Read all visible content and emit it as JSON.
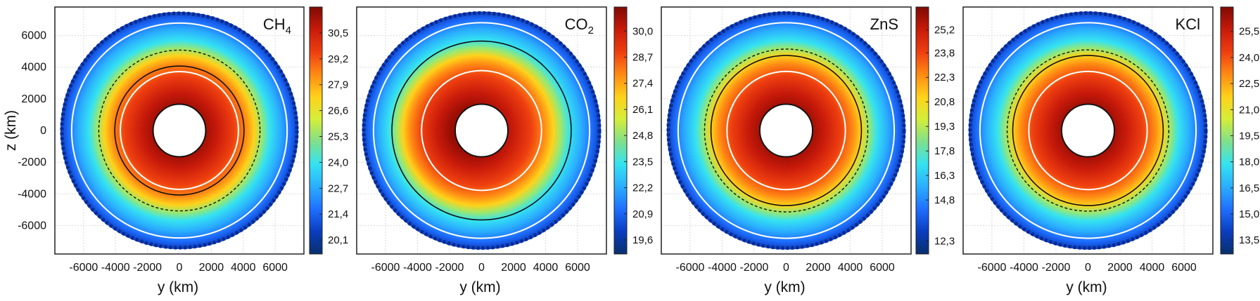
{
  "colors": {
    "grid": "#d9d9d9",
    "frame": "#222222",
    "contour": "#111111",
    "ring": "#ffffff",
    "scale": [
      "#08306b",
      "#0a3dbf",
      "#1f6fff",
      "#2aaeff",
      "#35e3f0",
      "#7fe08c",
      "#d4ee3a",
      "#ffd21a",
      "#ff8a14",
      "#ee3f10",
      "#c81a0a",
      "#7f0a04"
    ]
  },
  "chart_data": [
    {
      "type": "heatmap",
      "title_main": "CH",
      "title_sub": "4",
      "xlabel": "y (km)",
      "ylabel": "z (km)",
      "xlim": [
        -7800,
        7800
      ],
      "ylim": [
        -7800,
        7800
      ],
      "xticks": [
        "-6000",
        "-4000",
        "-2000",
        "0",
        "2000",
        "4000",
        "6000"
      ],
      "yticks": [
        "6000",
        "4000",
        "2000",
        "0",
        "-2000",
        "-4000",
        "-6000"
      ],
      "colorbar_ticks": [
        "30,5",
        "29,2",
        "27,9",
        "26,6",
        "25,3",
        "24,0",
        "22,7",
        "21,4",
        "20,1"
      ],
      "colorbar_range": [
        19.4,
        31.8
      ],
      "radii_km": {
        "hole": 1650,
        "inner_ring": 3700,
        "outer_ring": 6750,
        "edge": 7450
      },
      "contours": {
        "solid_km": 4050,
        "dashed_km": 5050
      },
      "peak_offset_km": 0,
      "show_ylabel": true
    },
    {
      "type": "heatmap",
      "title_main": "CO",
      "title_sub": "2",
      "xlabel": "y (km)",
      "ylabel": "",
      "xlim": [
        -7800,
        7800
      ],
      "ylim": [
        -7800,
        7800
      ],
      "xticks": [
        "-6000",
        "-4000",
        "-2000",
        "0",
        "2000",
        "4000",
        "6000"
      ],
      "yticks": [],
      "colorbar_ticks": [
        "30,0",
        "28,7",
        "27,4",
        "26,1",
        "24,8",
        "23,5",
        "22,2",
        "20,9",
        "19,6"
      ],
      "colorbar_range": [
        18.9,
        31.2
      ],
      "radii_km": {
        "hole": 1650,
        "inner_ring": 3750,
        "outer_ring": 6750,
        "edge": 7450
      },
      "contours": {
        "solid_km": 5600,
        "dashed_km": 0
      },
      "peak_offset_km": -600,
      "show_ylabel": false
    },
    {
      "type": "heatmap",
      "title_main": "ZnS",
      "title_sub": "",
      "xlabel": "y (km)",
      "ylabel": "",
      "xlim": [
        -7800,
        7800
      ],
      "ylim": [
        -7800,
        7800
      ],
      "xticks": [
        "-6000",
        "-4000",
        "-2000",
        "0",
        "2000",
        "4000",
        "6000"
      ],
      "yticks": [],
      "colorbar_ticks": [
        "25,2",
        "23,8",
        "22,3",
        "20,8",
        "19,3",
        "17,8",
        "16,3",
        "14,8",
        "12,3"
      ],
      "colorbar_range": [
        11.5,
        26.6
      ],
      "radii_km": {
        "hole": 1650,
        "inner_ring": 3700,
        "outer_ring": 6750,
        "edge": 7450
      },
      "contours": {
        "solid_km": 4700,
        "dashed_km": 5100
      },
      "peak_offset_km": 0,
      "show_ylabel": false
    },
    {
      "type": "heatmap",
      "title_main": "KCl",
      "title_sub": "",
      "xlabel": "y (km)",
      "ylabel": "",
      "xlim": [
        -7800,
        7800
      ],
      "ylim": [
        -7800,
        7800
      ],
      "xticks": [
        "-6000",
        "-4000",
        "-2000",
        "0",
        "2000",
        "4000",
        "6000"
      ],
      "yticks": [],
      "colorbar_ticks": [
        "25,5",
        "24,0",
        "22,5",
        "21,0",
        "19,5",
        "18,0",
        "16,5",
        "15,0",
        "13,5"
      ],
      "colorbar_range": [
        12.7,
        26.9
      ],
      "radii_km": {
        "hole": 1650,
        "inner_ring": 3700,
        "outer_ring": 6750,
        "edge": 7450
      },
      "contours": {
        "solid_km": 4700,
        "dashed_km": 5050
      },
      "peak_offset_km": 0,
      "show_ylabel": false
    }
  ]
}
